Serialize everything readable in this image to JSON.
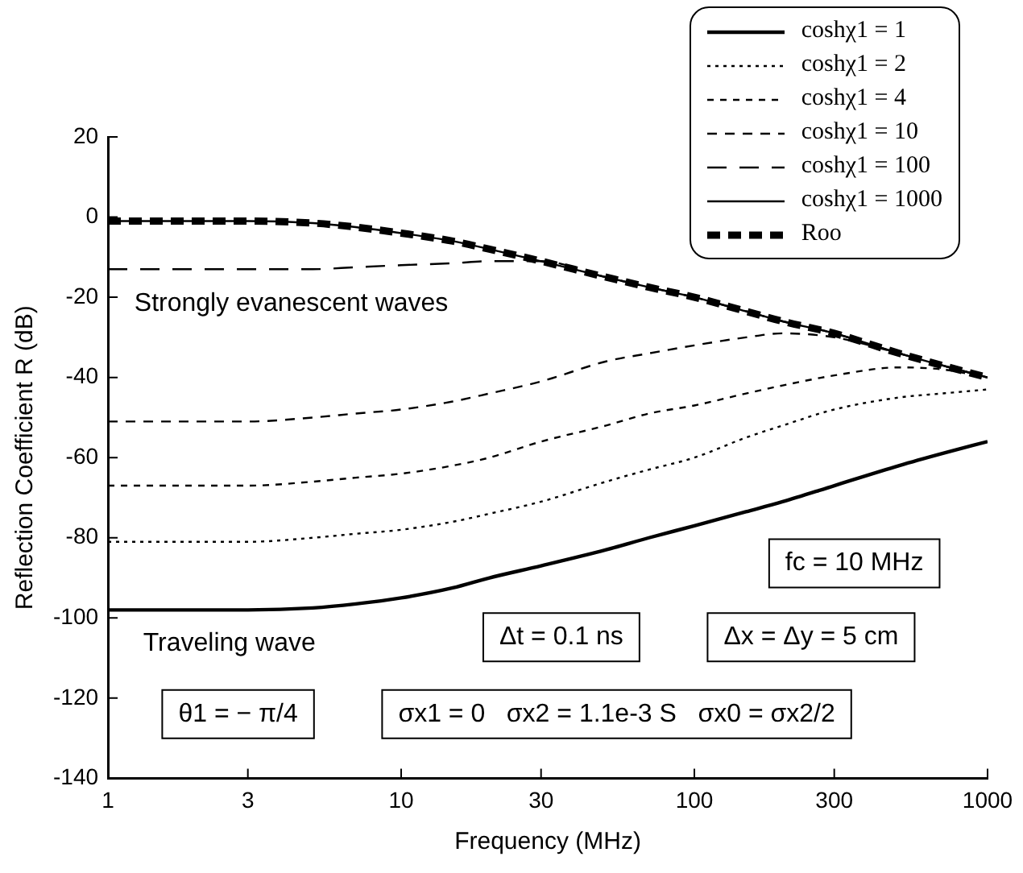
{
  "chart_data": {
    "type": "line",
    "xlabel": "Frequency (MHz)",
    "ylabel": "Reflection Coefficient R (dB)",
    "log": "x",
    "x": [
      1,
      2,
      3,
      5,
      7,
      10,
      15,
      20,
      30,
      50,
      70,
      100,
      150,
      200,
      300,
      500,
      700,
      1000
    ],
    "xlim": [
      1,
      1000
    ],
    "xticks": [
      1,
      3,
      10,
      30,
      100,
      300,
      1000
    ],
    "ylim": [
      -140,
      20
    ],
    "yticks": [
      -140,
      -120,
      -100,
      -80,
      -60,
      -40,
      -20,
      0,
      20
    ],
    "grid": false,
    "legend": "top right",
    "marker": "none",
    "series": [
      {
        "name": "coshχ1 = 1",
        "color": "#000000",
        "line_style": "solid",
        "values": [
          -98,
          -98,
          -98,
          -97.5,
          -96.5,
          -95,
          -92.5,
          -90,
          -87,
          -83,
          -80,
          -77,
          -73.5,
          -71,
          -67,
          -62,
          -59,
          -56
        ]
      },
      {
        "name": "coshχ1 = 2",
        "color": "#000000",
        "line_style": "dotted",
        "values": [
          -81,
          -81,
          -81,
          -80,
          -79,
          -78,
          -76,
          -74,
          -71,
          -66,
          -63,
          -60,
          -55,
          -52,
          -48,
          -45,
          -44,
          -43
        ]
      },
      {
        "name": "coshχ1 = 4",
        "color": "#000000",
        "line_style": "dashed",
        "values": [
          -67,
          -67,
          -67,
          -66,
          -65,
          -64,
          -62,
          -60,
          -56,
          -52,
          -49,
          -47,
          -44,
          -42,
          -39.5,
          -37.5,
          -38,
          -40
        ]
      },
      {
        "name": "coshχ1 = 10",
        "color": "#000000",
        "line_style": "dashed",
        "values": [
          -51,
          -51,
          -51,
          -50,
          -49,
          -48,
          -46,
          -44,
          -41,
          -36,
          -34,
          -32,
          -30,
          -29,
          -30,
          -34,
          -37,
          -40
        ]
      },
      {
        "name": "coshχ1 = 100",
        "color": "#000000",
        "line_style": "dashed",
        "values": [
          -13,
          -13,
          -13,
          -13,
          -12.5,
          -12,
          -11.5,
          -11,
          -11,
          -15,
          -17.5,
          -20,
          -23.5,
          -26,
          -29,
          -34,
          -37,
          -40
        ]
      },
      {
        "name": "coshχ1 = 1000",
        "color": "#000000",
        "line_style": "solid",
        "values": [
          -1,
          -1,
          -1,
          -1.5,
          -2.5,
          -4,
          -6,
          -8,
          -11,
          -15,
          -17.5,
          -20,
          -23.5,
          -26,
          -29,
          -34,
          -37,
          -40
        ]
      },
      {
        "name": "Roo",
        "color": "#000000",
        "line_style": "dashed",
        "values": [
          -1,
          -1,
          -1,
          -1.5,
          -2.5,
          -4,
          -6,
          -8,
          -11,
          -15,
          -17.5,
          -20,
          -23.5,
          -26,
          -29,
          -34,
          -37,
          -40
        ]
      }
    ],
    "annotations": [
      "Strongly evanescent waves",
      "Traveling wave",
      "fc = 10 MHz",
      "Δt = 0.1 ns",
      "Δx = Δy = 5 cm",
      "θ1 = − π/4",
      "σx1 = 0   σx2 = 1.1e-3 S   σx0 = σx2/2"
    ]
  }
}
